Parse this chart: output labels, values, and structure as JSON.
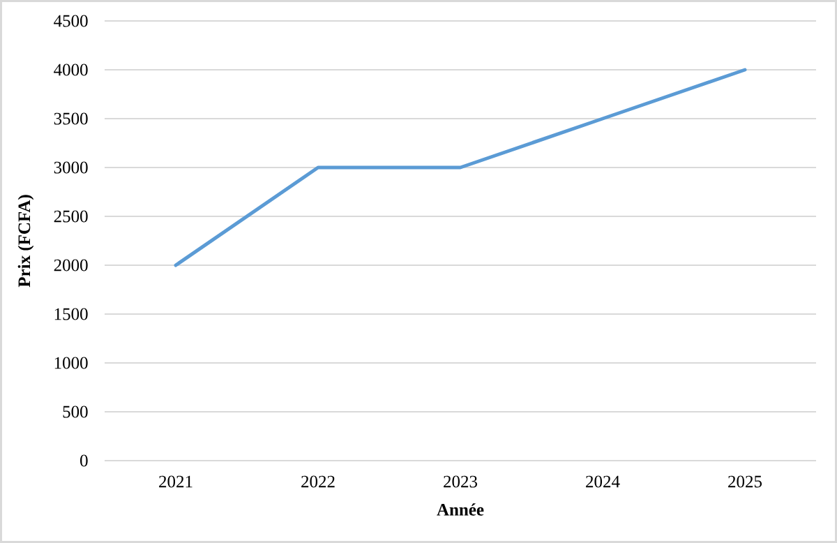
{
  "chart_data": {
    "type": "line",
    "xlabel": "Année",
    "ylabel": "Prix (FCFA)",
    "categories": [
      "2021",
      "2022",
      "2023",
      "2024",
      "2025"
    ],
    "series": [
      {
        "color": "#5b9bd5",
        "values": [
          2000,
          3000,
          3000,
          3500,
          4000
        ]
      }
    ],
    "ylim": [
      0,
      4500
    ],
    "yticks": [
      0,
      500,
      1000,
      1500,
      2000,
      2500,
      3000,
      3500,
      4000,
      4500
    ],
    "grid": "y",
    "marker": "none",
    "line_style": "solid"
  }
}
